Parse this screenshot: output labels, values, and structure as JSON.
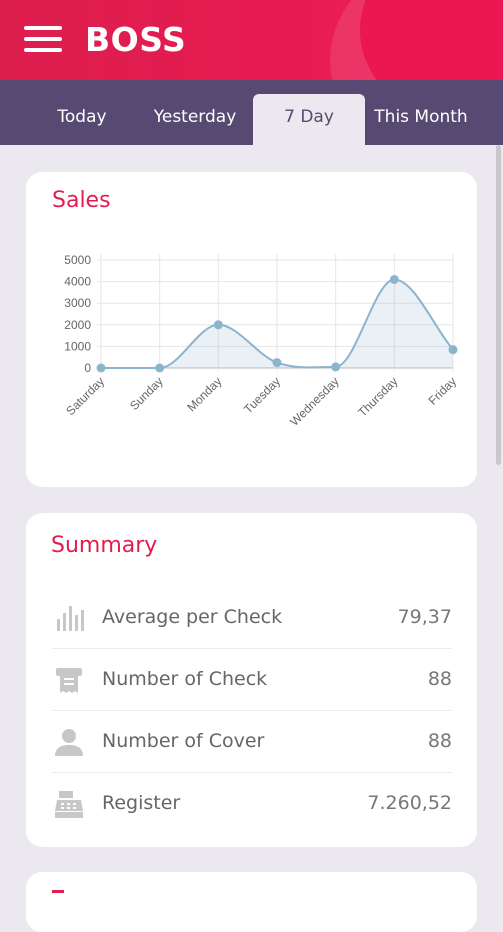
{
  "app": {
    "title": "BOSS",
    "menu_icon": "hamburger-menu-icon"
  },
  "tabs": [
    {
      "label": "Today",
      "active": false
    },
    {
      "label": "Yesterday",
      "active": false
    },
    {
      "label": "7 Day",
      "active": true
    },
    {
      "label": "This Month",
      "active": false
    }
  ],
  "sales": {
    "title": "Sales"
  },
  "chart_data": {
    "type": "area",
    "title": "Sales",
    "categories": [
      "Saturday",
      "Sunday",
      "Monday",
      "Tuesday",
      "Wednesday",
      "Thursday",
      "Friday"
    ],
    "values": [
      0,
      0,
      2000,
      250,
      50,
      4100,
      850
    ],
    "yticks": [
      "0",
      "1000",
      "2000",
      "3000",
      "4000",
      "5000"
    ],
    "ylim": [
      0,
      5000
    ],
    "grid": true,
    "color": "#8cb4cd"
  },
  "summary": {
    "title": "Summary",
    "items": [
      {
        "label": "Average per Check",
        "value": "79,37",
        "icon": "bar-chart-icon"
      },
      {
        "label": "Number of Check",
        "value": "88",
        "icon": "receipt-icon"
      },
      {
        "label": "Number of Cover",
        "value": "88",
        "icon": "person-icon"
      },
      {
        "label": "Register",
        "value": "7.260,52",
        "icon": "cash-register-icon"
      }
    ]
  },
  "colors": {
    "accent": "#e21c50",
    "tab_bar": "#574a72",
    "background": "#ebe8ef"
  }
}
